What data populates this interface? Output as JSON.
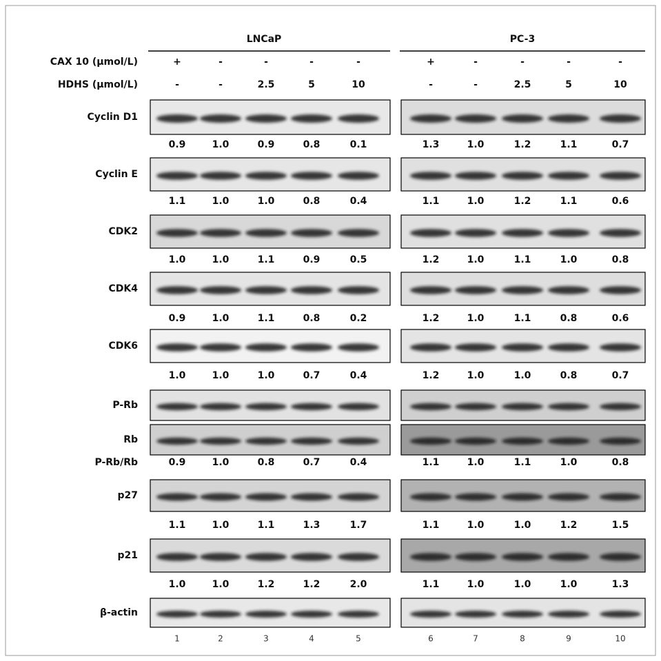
{
  "groups": [
    "LNCaP",
    "PC-3"
  ],
  "conditions": [
    {
      "label": "CAX 10 (μmol/L)",
      "values": [
        "+",
        "-",
        "-",
        "-",
        "-",
        "+",
        "-",
        "-",
        "-",
        "-"
      ]
    },
    {
      "label": "HDHS (μmol/L)",
      "values": [
        "-",
        "-",
        "2.5",
        "5",
        "10",
        "-",
        "-",
        "2.5",
        "5",
        "10"
      ]
    }
  ],
  "blots": [
    {
      "label": "Cyclin D1",
      "ratios": [
        "0.9",
        "1.0",
        "0.9",
        "0.8",
        "0.1",
        "1.3",
        "1.0",
        "1.2",
        "1.1",
        "0.7"
      ]
    },
    {
      "label": "Cyclin E",
      "ratios": [
        "1.1",
        "1.0",
        "1.0",
        "0.8",
        "0.4",
        "1.1",
        "1.0",
        "1.2",
        "1.1",
        "0.6"
      ]
    },
    {
      "label": "CDK2",
      "ratios": [
        "1.0",
        "1.0",
        "1.1",
        "0.9",
        "0.5",
        "1.2",
        "1.0",
        "1.1",
        "1.0",
        "0.8"
      ]
    },
    {
      "label": "CDK4",
      "ratios": [
        "0.9",
        "1.0",
        "1.1",
        "0.8",
        "0.2",
        "1.2",
        "1.0",
        "1.1",
        "0.8",
        "0.6"
      ]
    },
    {
      "label": "CDK6",
      "ratios": [
        "1.0",
        "1.0",
        "1.0",
        "0.7",
        "0.4",
        "1.2",
        "1.0",
        "1.0",
        "0.8",
        "0.7"
      ]
    },
    {
      "label": "P-Rb"
    },
    {
      "label": "Rb",
      "ratio_label": "P-Rb/Rb",
      "ratios": [
        "0.9",
        "1.0",
        "0.8",
        "0.7",
        "0.4",
        "1.1",
        "1.0",
        "1.1",
        "1.0",
        "0.8"
      ]
    },
    {
      "label": "p27",
      "ratios": [
        "1.1",
        "1.0",
        "1.1",
        "1.3",
        "1.7",
        "1.1",
        "1.0",
        "1.0",
        "1.2",
        "1.5"
      ]
    },
    {
      "label": "p21",
      "ratios": [
        "1.0",
        "1.0",
        "1.2",
        "1.2",
        "2.0",
        "1.1",
        "1.0",
        "1.0",
        "1.0",
        "1.3"
      ]
    },
    {
      "label": "β-actin"
    }
  ],
  "lanes": [
    1,
    2,
    3,
    4,
    5,
    6,
    7,
    8,
    9,
    10
  ]
}
